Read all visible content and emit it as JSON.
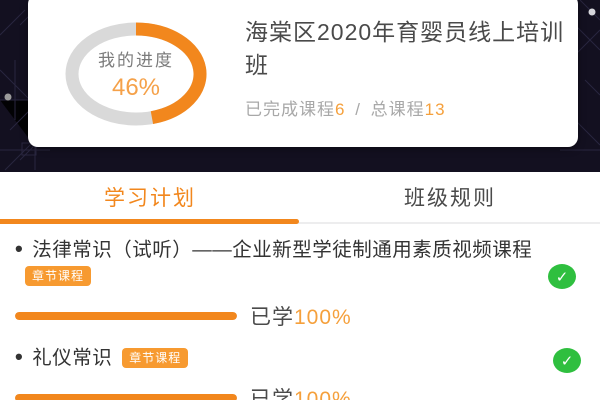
{
  "progress_card": {
    "ring": {
      "label": "我的进度",
      "percent": 46,
      "percent_label": "46%"
    },
    "title": "海棠区2020年育婴员线上培训班",
    "stats": {
      "completed_label": "已完成课程",
      "completed_value": "6",
      "separator": "/",
      "total_label": "总课程",
      "total_value": "13"
    }
  },
  "tabs": [
    {
      "label": "学习计划",
      "active": true
    },
    {
      "label": "班级规则",
      "active": false
    }
  ],
  "courses": [
    {
      "bullet": "•",
      "title": "法律常识（试听）——企业新型学徒制通用素质视频课程",
      "badge": "章节课程",
      "completed": true,
      "check_icon": "✓",
      "progress_label": "已学",
      "progress_value": "100%",
      "progress_percent": 100
    },
    {
      "bullet": "•",
      "title": "礼仪常识",
      "badge": "章节课程",
      "completed": true,
      "check_icon": "✓",
      "progress_label": "已学",
      "progress_value": "100%",
      "progress_percent": 100
    }
  ],
  "colors": {
    "accent_orange": "#F2871D",
    "light_orange": "#F5A03C",
    "success_green": "#2FBF3F",
    "header_background": "#131020",
    "ring_track": "#D9D9D9"
  }
}
